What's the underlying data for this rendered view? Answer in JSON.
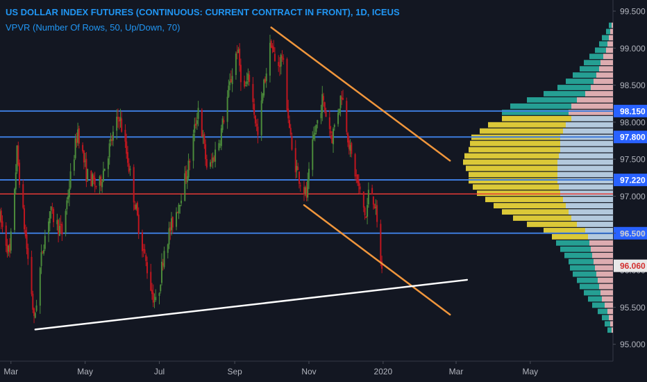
{
  "header": {
    "title": "US DOLLAR INDEX FUTURES (CONTINUOUS: CURRENT CONTRACT IN FRONT), 1D, ICEUS",
    "indicator": "VPVR (Number Of Rows, 50, Up/Down, 70)"
  },
  "colors": {
    "background": "#131722",
    "candle_up": "#4b8b3b",
    "candle_down": "#c0161f",
    "level_line": "#3d7bdc",
    "current_line": "#e53935",
    "channel": "#f0963c",
    "trendline": "#ffffff",
    "axis_text": "#b2b5be",
    "vp_up": "#26a69a",
    "vp_down": "#e8b4b8",
    "va_up": "#e6d23a",
    "va_down": "#bcd3e8"
  },
  "chart_data": {
    "type": "candlestick",
    "y_axis": {
      "range": [
        94.8,
        99.65
      ],
      "ticks": [
        "99.500",
        "99.000",
        "98.500",
        "98.000",
        "97.500",
        "97.000",
        "96.500",
        "96.000",
        "95.500",
        "95.000"
      ]
    },
    "x_axis": {
      "range": [
        "2019-02-20",
        "2020-07-08"
      ],
      "ticks": [
        {
          "label": "Mar",
          "date": "2019-03-01"
        },
        {
          "label": "May",
          "date": "2019-05-01"
        },
        {
          "label": "Jul",
          "date": "2019-07-01"
        },
        {
          "label": "Sep",
          "date": "2019-09-01"
        },
        {
          "label": "Nov",
          "date": "2019-11-01"
        },
        {
          "label": "2020",
          "date": "2020-01-01"
        },
        {
          "label": "Mar",
          "date": "2020-03-01"
        },
        {
          "label": "May",
          "date": "2020-05-01"
        }
      ]
    },
    "price_path": [
      [
        "2019-02-20",
        96.7
      ],
      [
        "2019-02-28",
        96.2
      ],
      [
        "2019-03-06",
        97.6
      ],
      [
        "2019-03-10",
        96.9
      ],
      [
        "2019-03-18",
        95.7
      ],
      [
        "2019-03-20",
        95.3
      ],
      [
        "2019-03-27",
        96.3
      ],
      [
        "2019-04-02",
        96.8
      ],
      [
        "2019-04-12",
        96.5
      ],
      [
        "2019-04-25",
        97.9
      ],
      [
        "2019-05-02",
        97.3
      ],
      [
        "2019-05-12",
        97.1
      ],
      [
        "2019-05-20",
        97.6
      ],
      [
        "2019-05-29",
        98.1
      ],
      [
        "2019-06-05",
        97.5
      ],
      [
        "2019-06-15",
        96.5
      ],
      [
        "2019-06-25",
        95.7
      ],
      [
        "2019-06-29",
        95.5
      ],
      [
        "2019-07-05",
        96.3
      ],
      [
        "2019-07-15",
        96.8
      ],
      [
        "2019-07-25",
        97.4
      ],
      [
        "2019-08-02",
        98.2
      ],
      [
        "2019-08-10",
        97.3
      ],
      [
        "2019-08-20",
        97.8
      ],
      [
        "2019-08-28",
        98.5
      ],
      [
        "2019-09-03",
        99.0
      ],
      [
        "2019-09-08",
        98.4
      ],
      [
        "2019-09-13",
        98.6
      ],
      [
        "2019-09-20",
        97.8
      ],
      [
        "2019-09-25",
        98.5
      ],
      [
        "2019-10-01",
        99.1
      ],
      [
        "2019-10-05",
        98.7
      ],
      [
        "2019-10-10",
        98.9
      ],
      [
        "2019-10-18",
        97.6
      ],
      [
        "2019-10-25",
        97.2
      ],
      [
        "2019-10-30",
        97.0
      ],
      [
        "2019-11-05",
        97.8
      ],
      [
        "2019-11-12",
        98.3
      ],
      [
        "2019-11-20",
        97.8
      ],
      [
        "2019-11-28",
        98.4
      ],
      [
        "2019-12-05",
        97.6
      ],
      [
        "2019-12-12",
        97.1
      ],
      [
        "2019-12-18",
        96.7
      ],
      [
        "2019-12-21",
        97.2
      ],
      [
        "2019-12-25",
        96.9
      ],
      [
        "2019-12-31",
        96.0
      ]
    ],
    "horizontal_levels": [
      {
        "price": 98.15,
        "label": "98.150",
        "kind": "level"
      },
      {
        "price": 97.8,
        "label": "97.800",
        "kind": "level"
      },
      {
        "price": 97.22,
        "label": "97.220",
        "kind": "level"
      },
      {
        "price": 96.5,
        "label": "96.500",
        "kind": "level"
      },
      {
        "price": 97.03,
        "label": "",
        "kind": "point-of-control"
      }
    ],
    "last_price": {
      "value": 96.06,
      "label": "96.060"
    },
    "drawings": [
      {
        "kind": "channel-upper",
        "start": [
          "2019-10-01",
          99.28
        ],
        "end": [
          "2020-02-25",
          97.48
        ]
      },
      {
        "kind": "channel-lower",
        "start": [
          "2019-10-28",
          96.88
        ],
        "end": [
          "2020-02-25",
          95.4
        ]
      },
      {
        "kind": "support-trendline",
        "start": [
          "2019-03-21",
          95.2
        ],
        "end": [
          "2020-03-10",
          95.87
        ]
      }
    ],
    "volume_profile": {
      "price_low": 95.15,
      "price_high": 99.35,
      "rows": 50,
      "up": [
        0.03,
        0.04,
        0.05,
        0.07,
        0.09,
        0.1,
        0.12,
        0.14,
        0.15,
        0.17,
        0.18,
        0.18,
        0.2,
        0.22,
        0.24,
        0.26,
        0.3,
        0.36,
        0.42,
        0.48,
        0.52,
        0.56,
        0.6,
        0.62,
        0.64,
        0.64,
        0.66,
        0.68,
        0.68,
        0.66,
        0.65,
        0.64,
        0.6,
        0.56,
        0.5,
        0.48,
        0.44,
        0.36,
        0.3,
        0.24,
        0.2,
        0.17,
        0.14,
        0.12,
        0.1,
        0.08,
        0.06,
        0.05,
        0.03,
        0.02
      ],
      "down": [
        0.01,
        0.02,
        0.03,
        0.04,
        0.06,
        0.08,
        0.09,
        0.1,
        0.11,
        0.12,
        0.13,
        0.14,
        0.15,
        0.16,
        0.17,
        0.18,
        0.2,
        0.26,
        0.3,
        0.32,
        0.34,
        0.36,
        0.38,
        0.39,
        0.4,
        0.4,
        0.4,
        0.4,
        0.39,
        0.38,
        0.38,
        0.38,
        0.36,
        0.34,
        0.3,
        0.32,
        0.3,
        0.26,
        0.2,
        0.16,
        0.14,
        0.12,
        0.1,
        0.09,
        0.07,
        0.05,
        0.04,
        0.03,
        0.02,
        0.01
      ],
      "value_area_rows": [
        15,
        34
      ]
    }
  }
}
